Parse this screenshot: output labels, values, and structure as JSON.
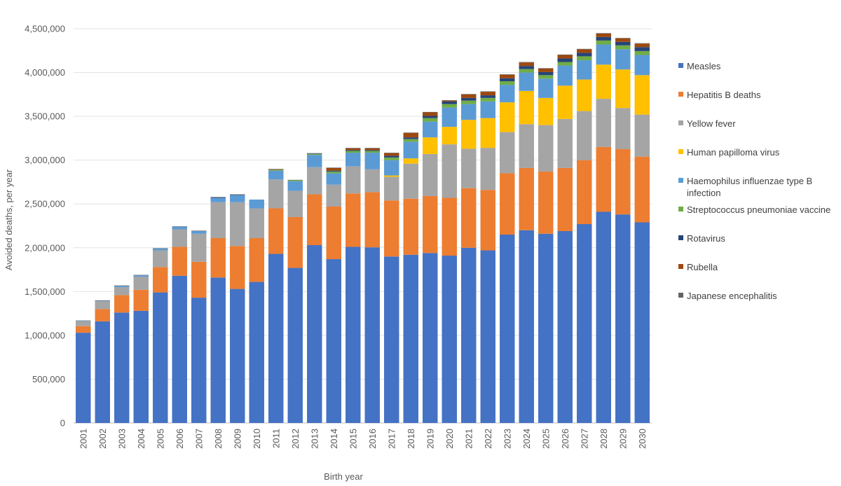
{
  "chart_data": {
    "type": "stacked-bar",
    "title": "",
    "xlabel": "Birth year",
    "ylabel": "Avoided deaths, per year",
    "ylim": [
      0,
      4500000
    ],
    "yticks": [
      0,
      500000,
      1000000,
      1500000,
      2000000,
      2500000,
      3000000,
      3500000,
      4000000,
      4500000
    ],
    "ytick_labels": [
      "0",
      "500,000",
      "1,000,000",
      "1,500,000",
      "2,000,000",
      "2,500,000",
      "3,000,000",
      "3,500,000",
      "4,000,000",
      "4,500,000"
    ],
    "grid": true,
    "legend_position": "right",
    "categories": [
      "2001",
      "2002",
      "2003",
      "2004",
      "2005",
      "2006",
      "2007",
      "2008",
      "2009",
      "2010",
      "2011",
      "2012",
      "2013",
      "2014",
      "2015",
      "2016",
      "2017",
      "2018",
      "2019",
      "2020",
      "2021",
      "2022",
      "2023",
      "2024",
      "2025",
      "2026",
      "2027",
      "2028",
      "2029",
      "2030"
    ],
    "series": [
      {
        "name": "Measles",
        "color": "#4472C4",
        "values": [
          1030000,
          1160000,
          1260000,
          1280000,
          1490000,
          1680000,
          1430000,
          1660000,
          1530000,
          1610000,
          1930000,
          1770000,
          2030000,
          1870000,
          2010000,
          2005000,
          1900000,
          1920000,
          1940000,
          1910000,
          2000000,
          1970000,
          2150000,
          2200000,
          2160000,
          2190000,
          2270000,
          2410000,
          2380000,
          2290000
        ]
      },
      {
        "name": "Hepatitis B deaths",
        "color": "#ED7D31",
        "values": [
          75000,
          140000,
          200000,
          240000,
          290000,
          330000,
          410000,
          450000,
          490000,
          500000,
          520000,
          580000,
          580000,
          600000,
          610000,
          630000,
          640000,
          640000,
          650000,
          660000,
          680000,
          690000,
          700000,
          710000,
          710000,
          720000,
          730000,
          740000,
          745000,
          750000
        ]
      },
      {
        "name": "Yellow fever",
        "color": "#A5A5A5",
        "values": [
          55000,
          90000,
          90000,
          150000,
          190000,
          200000,
          320000,
          410000,
          500000,
          340000,
          330000,
          300000,
          310000,
          250000,
          310000,
          260000,
          270000,
          400000,
          480000,
          610000,
          450000,
          480000,
          470000,
          500000,
          530000,
          560000,
          560000,
          550000,
          470000,
          480000
        ]
      },
      {
        "name": "Human papilloma virus",
        "color": "#FFC000",
        "values": [
          0,
          0,
          0,
          0,
          0,
          0,
          0,
          0,
          0,
          0,
          0,
          0,
          0,
          0,
          0,
          0,
          15000,
          60000,
          190000,
          200000,
          330000,
          340000,
          340000,
          380000,
          310000,
          380000,
          360000,
          390000,
          440000,
          450000
        ]
      },
      {
        "name": "Haemophilus influenzae type B infection",
        "color": "#5B9BD5",
        "values": [
          5000,
          5000,
          15000,
          15000,
          20000,
          30000,
          30000,
          50000,
          80000,
          100000,
          100000,
          110000,
          140000,
          130000,
          155000,
          190000,
          175000,
          190000,
          180000,
          220000,
          180000,
          190000,
          200000,
          210000,
          220000,
          230000,
          220000,
          230000,
          230000,
          230000
        ]
      },
      {
        "name": "Streptococcus pneumoniae vaccine",
        "color": "#70AD47",
        "values": [
          0,
          0,
          0,
          0,
          0,
          0,
          0,
          0,
          0,
          0,
          10000,
          10000,
          10000,
          20000,
          20000,
          20000,
          30000,
          30000,
          40000,
          40000,
          40000,
          40000,
          40000,
          40000,
          40000,
          40000,
          45000,
          45000,
          45000,
          45000
        ]
      },
      {
        "name": "Rotavirus",
        "color": "#264478",
        "values": [
          0,
          0,
          0,
          0,
          0,
          0,
          0,
          5000,
          5000,
          0,
          0,
          0,
          5000,
          10000,
          10000,
          10000,
          20000,
          20000,
          25000,
          30000,
          30000,
          30000,
          35000,
          35000,
          35000,
          40000,
          40000,
          40000,
          40000,
          45000
        ]
      },
      {
        "name": "Rubella",
        "color": "#9E480E",
        "values": [
          0,
          0,
          0,
          0,
          0,
          0,
          0,
          0,
          0,
          0,
          5000,
          0,
          0,
          30000,
          20000,
          20000,
          30000,
          50000,
          40000,
          10000,
          40000,
          40000,
          40000,
          40000,
          40000,
          40000,
          40000,
          40000,
          40000,
          40000
        ]
      },
      {
        "name": "Japanese encephalitis",
        "color": "#636363",
        "values": [
          5000,
          5000,
          5000,
          5000,
          5000,
          5000,
          5000,
          5000,
          5000,
          0,
          5000,
          5000,
          5000,
          5000,
          5000,
          5000,
          5000,
          5000,
          5000,
          5000,
          5000,
          5000,
          5000,
          5000,
          5000,
          5000,
          5000,
          5000,
          5000,
          5000
        ]
      }
    ]
  }
}
